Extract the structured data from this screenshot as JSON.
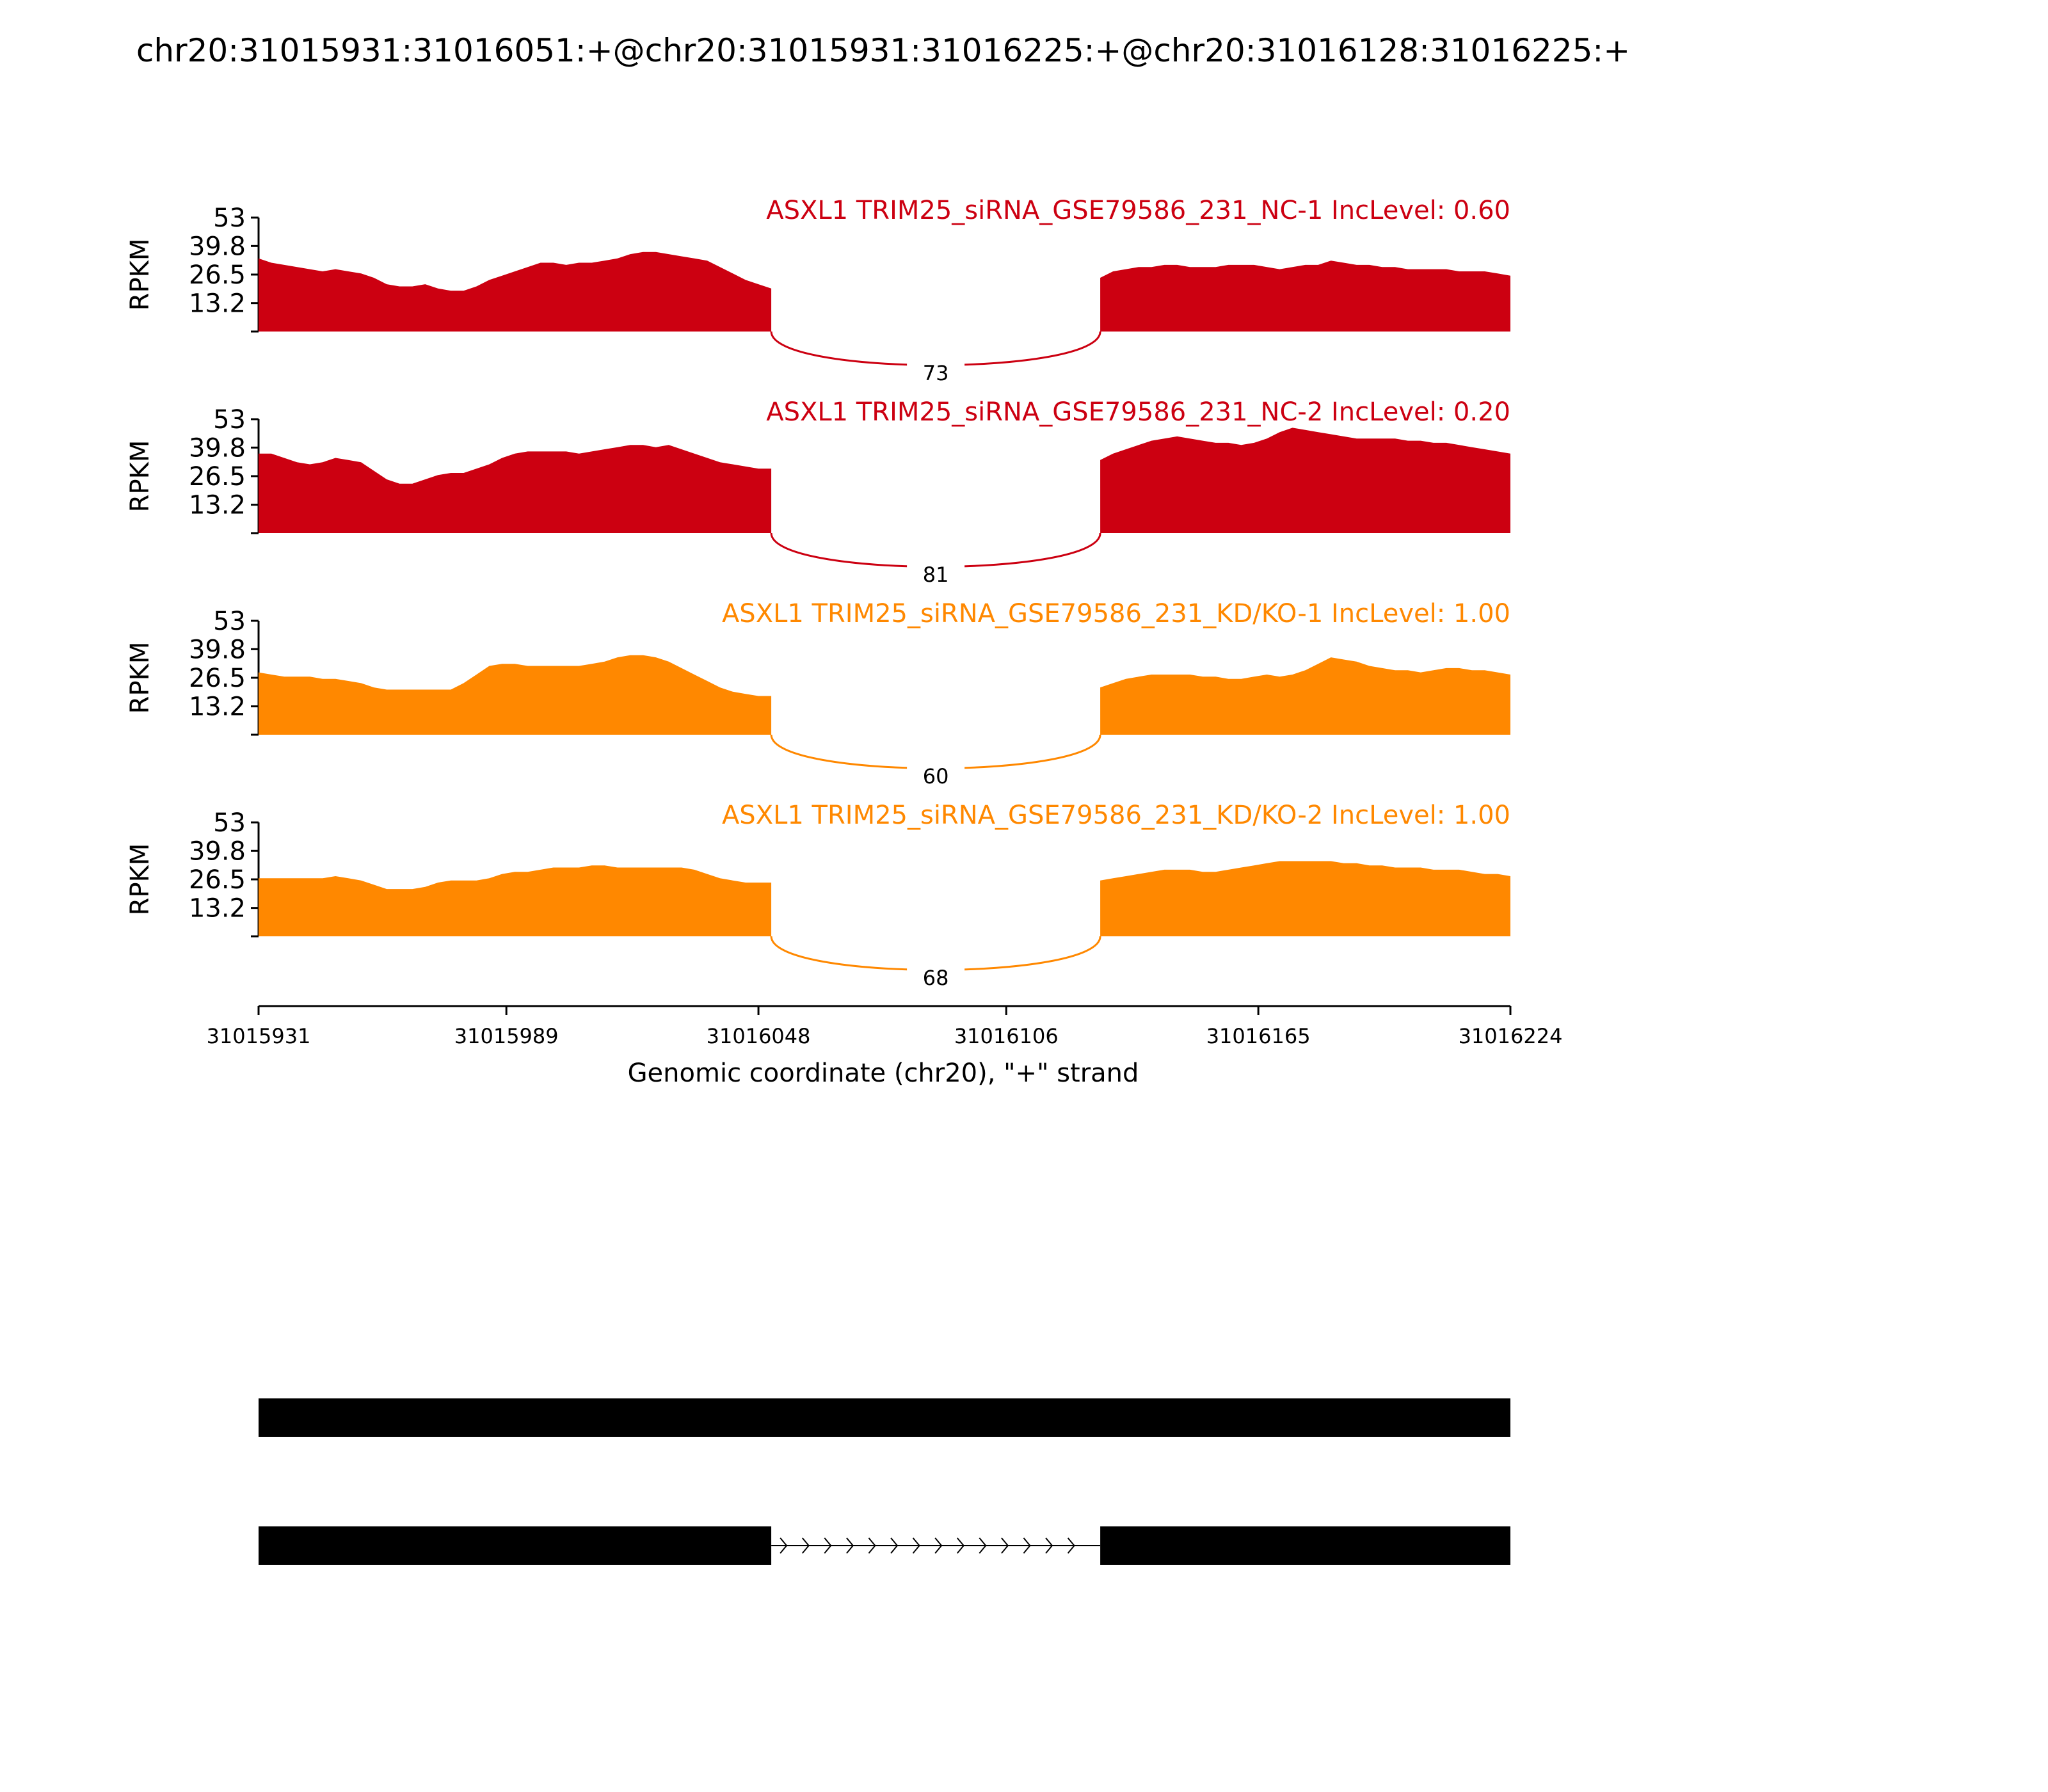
{
  "chart_data": {
    "type": "area",
    "title": "chr20:31015931:31016051:+@chr20:31015931:31016225:+@chr20:31016128:31016225:+",
    "xlabel": "Genomic coordinate (chr20), \"+\" strand",
    "ylabel": "RPKM",
    "xlim": [
      31015931,
      31016224
    ],
    "x_ticks": [
      31015931,
      31015989,
      31016048,
      31016106,
      31016165,
      31016224
    ],
    "y_ticks": [
      13.2,
      26.5,
      39.8,
      53
    ],
    "ylim": [
      0,
      53
    ],
    "exon1": [
      31015931,
      31016051
    ],
    "exon2": [
      31016128,
      31016224
    ],
    "series": [
      {
        "name": "ASXL1 TRIM25_siRNA_GSE79586_231_NC-1 IncLevel: 0.60",
        "color": "#cc0011",
        "junction_count": "73",
        "x": [
          31015931,
          31015934,
          31015937,
          31015940,
          31015943,
          31015946,
          31015949,
          31015952,
          31015955,
          31015958,
          31015961,
          31015964,
          31015967,
          31015970,
          31015973,
          31015976,
          31015979,
          31015982,
          31015985,
          31015988,
          31015991,
          31015994,
          31015997,
          31016000,
          31016003,
          31016006,
          31016009,
          31016012,
          31016015,
          31016018,
          31016021,
          31016024,
          31016027,
          31016030,
          31016033,
          31016036,
          31016039,
          31016042,
          31016045,
          31016048,
          31016051,
          31016128,
          31016131,
          31016134,
          31016137,
          31016140,
          31016143,
          31016146,
          31016149,
          31016152,
          31016155,
          31016158,
          31016161,
          31016164,
          31016167,
          31016170,
          31016173,
          31016176,
          31016179,
          31016182,
          31016185,
          31016188,
          31016191,
          31016194,
          31016197,
          31016200,
          31016203,
          31016206,
          31016209,
          31016212,
          31016215,
          31016218,
          31016221,
          31016224
        ],
        "values": [
          34,
          32,
          31,
          30,
          29,
          28,
          29,
          28,
          27,
          25,
          22,
          21,
          21,
          22,
          20,
          19,
          19,
          21,
          24,
          26,
          28,
          30,
          32,
          32,
          31,
          32,
          32,
          33,
          34,
          36,
          37,
          37,
          36,
          35,
          34,
          33,
          30,
          27,
          24,
          22,
          20,
          25,
          28,
          29,
          30,
          30,
          31,
          31,
          30,
          30,
          30,
          31,
          31,
          31,
          30,
          29,
          30,
          31,
          31,
          33,
          32,
          31,
          31,
          30,
          30,
          29,
          29,
          29,
          29,
          28,
          28,
          28,
          27,
          26
        ]
      },
      {
        "name": "ASXL1 TRIM25_siRNA_GSE79586_231_NC-2 IncLevel: 0.20",
        "color": "#cc0011",
        "junction_count": "81",
        "x": [
          31015931,
          31015934,
          31015937,
          31015940,
          31015943,
          31015946,
          31015949,
          31015952,
          31015955,
          31015958,
          31015961,
          31015964,
          31015967,
          31015970,
          31015973,
          31015976,
          31015979,
          31015982,
          31015985,
          31015988,
          31015991,
          31015994,
          31015997,
          31016000,
          31016003,
          31016006,
          31016009,
          31016012,
          31016015,
          31016018,
          31016021,
          31016024,
          31016027,
          31016030,
          31016033,
          31016036,
          31016039,
          31016042,
          31016045,
          31016048,
          31016051,
          31016128,
          31016131,
          31016134,
          31016137,
          31016140,
          31016143,
          31016146,
          31016149,
          31016152,
          31016155,
          31016158,
          31016161,
          31016164,
          31016167,
          31016170,
          31016173,
          31016176,
          31016179,
          31016182,
          31016185,
          31016188,
          31016191,
          31016194,
          31016197,
          31016200,
          31016203,
          31016206,
          31016209,
          31016212,
          31016215,
          31016218,
          31016221,
          31016224
        ],
        "values": [
          37,
          37,
          35,
          33,
          32,
          33,
          35,
          34,
          33,
          29,
          25,
          23,
          23,
          25,
          27,
          28,
          28,
          30,
          32,
          35,
          37,
          38,
          38,
          38,
          38,
          37,
          38,
          39,
          40,
          41,
          41,
          40,
          41,
          39,
          37,
          35,
          33,
          32,
          31,
          30,
          30,
          34,
          37,
          39,
          41,
          43,
          44,
          45,
          44,
          43,
          42,
          42,
          41,
          42,
          44,
          47,
          49,
          48,
          47,
          46,
          45,
          44,
          44,
          44,
          44,
          43,
          43,
          42,
          42,
          41,
          40,
          39,
          38,
          37
        ]
      },
      {
        "name": "ASXL1 TRIM25_siRNA_GSE79586_231_KD/KO-1 IncLevel: 1.00",
        "color": "#ff8800",
        "junction_count": "60",
        "x": [
          31015931,
          31015934,
          31015937,
          31015940,
          31015943,
          31015946,
          31015949,
          31015952,
          31015955,
          31015958,
          31015961,
          31015964,
          31015967,
          31015970,
          31015973,
          31015976,
          31015979,
          31015982,
          31015985,
          31015988,
          31015991,
          31015994,
          31015997,
          31016000,
          31016003,
          31016006,
          31016009,
          31016012,
          31016015,
          31016018,
          31016021,
          31016024,
          31016027,
          31016030,
          31016033,
          31016036,
          31016039,
          31016042,
          31016045,
          31016048,
          31016051,
          31016128,
          31016131,
          31016134,
          31016137,
          31016140,
          31016143,
          31016146,
          31016149,
          31016152,
          31016155,
          31016158,
          31016161,
          31016164,
          31016167,
          31016170,
          31016173,
          31016176,
          31016179,
          31016182,
          31016185,
          31016188,
          31016191,
          31016194,
          31016197,
          31016200,
          31016203,
          31016206,
          31016209,
          31016212,
          31016215,
          31016218,
          31016221,
          31016224
        ],
        "values": [
          29,
          28,
          27,
          27,
          27,
          26,
          26,
          25,
          24,
          22,
          21,
          21,
          21,
          21,
          21,
          21,
          24,
          28,
          32,
          33,
          33,
          32,
          32,
          32,
          32,
          32,
          33,
          34,
          36,
          37,
          37,
          36,
          34,
          31,
          28,
          25,
          22,
          20,
          19,
          18,
          18,
          22,
          24,
          26,
          27,
          28,
          28,
          28,
          28,
          27,
          27,
          26,
          26,
          27,
          28,
          27,
          28,
          30,
          33,
          36,
          35,
          34,
          32,
          31,
          30,
          30,
          29,
          30,
          31,
          31,
          30,
          30,
          29,
          28
        ]
      },
      {
        "name": "ASXL1 TRIM25_siRNA_GSE79586_231_KD/KO-2 IncLevel: 1.00",
        "color": "#ff8800",
        "junction_count": "68",
        "x": [
          31015931,
          31015934,
          31015937,
          31015940,
          31015943,
          31015946,
          31015949,
          31015952,
          31015955,
          31015958,
          31015961,
          31015964,
          31015967,
          31015970,
          31015973,
          31015976,
          31015979,
          31015982,
          31015985,
          31015988,
          31015991,
          31015994,
          31015997,
          31016000,
          31016003,
          31016006,
          31016009,
          31016012,
          31016015,
          31016018,
          31016021,
          31016024,
          31016027,
          31016030,
          31016033,
          31016036,
          31016039,
          31016042,
          31016045,
          31016048,
          31016051,
          31016128,
          31016131,
          31016134,
          31016137,
          31016140,
          31016143,
          31016146,
          31016149,
          31016152,
          31016155,
          31016158,
          31016161,
          31016164,
          31016167,
          31016170,
          31016173,
          31016176,
          31016179,
          31016182,
          31016185,
          31016188,
          31016191,
          31016194,
          31016197,
          31016200,
          31016203,
          31016206,
          31016209,
          31016212,
          31016215,
          31016218,
          31016221,
          31016224
        ],
        "values": [
          27,
          27,
          27,
          27,
          27,
          27,
          28,
          27,
          26,
          24,
          22,
          22,
          22,
          23,
          25,
          26,
          26,
          26,
          27,
          29,
          30,
          30,
          31,
          32,
          32,
          32,
          33,
          33,
          32,
          32,
          32,
          32,
          32,
          32,
          31,
          29,
          27,
          26,
          25,
          25,
          25,
          26,
          27,
          28,
          29,
          30,
          31,
          31,
          31,
          30,
          30,
          31,
          32,
          33,
          34,
          35,
          35,
          35,
          35,
          35,
          34,
          34,
          33,
          33,
          32,
          32,
          32,
          31,
          31,
          31,
          30,
          29,
          29,
          28
        ]
      }
    ]
  }
}
